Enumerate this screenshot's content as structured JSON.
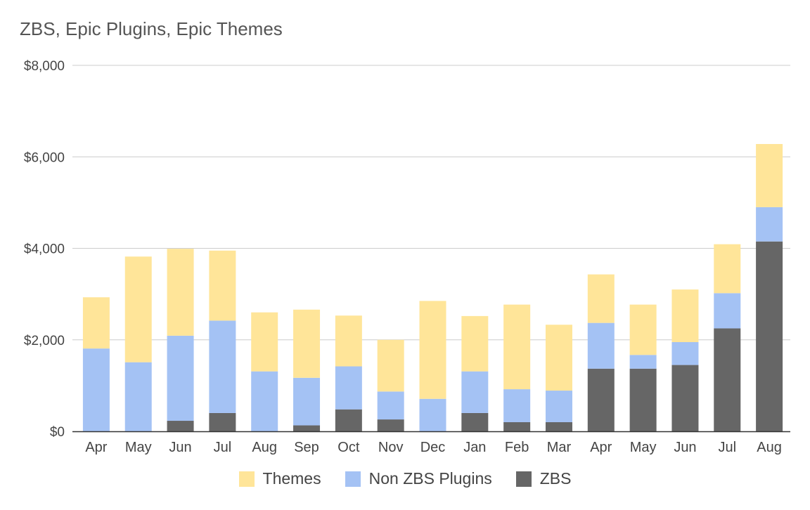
{
  "chart_data": {
    "type": "bar",
    "stacked": true,
    "title": "ZBS, Epic Plugins, Epic Themes",
    "xlabel": "",
    "ylabel": "",
    "ylim": [
      0,
      8000
    ],
    "yticks": [
      0,
      2000,
      4000,
      6000,
      8000
    ],
    "ytick_labels": [
      "$0",
      "$2,000",
      "$4,000",
      "$6,000",
      "$8,000"
    ],
    "grid": true,
    "legend_position": "bottom",
    "categories": [
      "Apr",
      "May",
      "Jun",
      "Jul",
      "Aug",
      "Sep",
      "Oct",
      "Nov",
      "Dec",
      "Jan",
      "Feb",
      "Mar",
      "Apr",
      "May",
      "Jun",
      "Jul",
      "Aug"
    ],
    "series": [
      {
        "name": "ZBS",
        "color": "#666666",
        "values": [
          0,
          0,
          230,
          400,
          0,
          130,
          480,
          260,
          0,
          400,
          200,
          200,
          1370,
          1370,
          1450,
          2250,
          4150
        ]
      },
      {
        "name": "Non ZBS Plugins",
        "color": "#a4c2f4",
        "values": [
          1810,
          1510,
          1860,
          2020,
          1310,
          1040,
          940,
          610,
          710,
          910,
          720,
          690,
          1000,
          300,
          500,
          770,
          750
        ]
      },
      {
        "name": "Themes",
        "color": "#ffe599",
        "values": [
          1120,
          2310,
          1900,
          1530,
          1290,
          1490,
          1110,
          1130,
          2140,
          1210,
          1850,
          1440,
          1060,
          1100,
          1150,
          1070,
          1380
        ]
      }
    ]
  }
}
